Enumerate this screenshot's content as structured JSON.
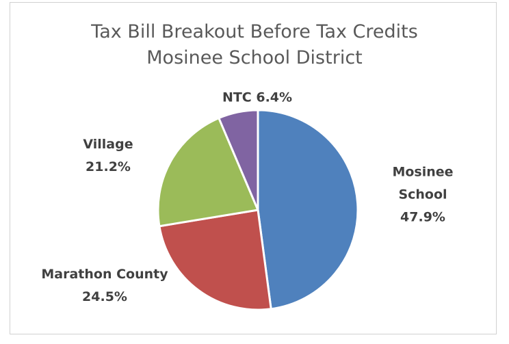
{
  "chart_data": {
    "type": "pie",
    "title": "Tax Bill Breakout Before Tax Credits",
    "subtitle": "Mosinee School District",
    "slices": [
      {
        "label_lines": [
          "Mosinee",
          "School",
          "47.9%"
        ],
        "value": 47.9,
        "color": "#4f81bd"
      },
      {
        "label_lines": [
          "Marathon County",
          "24.5%"
        ],
        "value": 24.5,
        "color": "#c0504d"
      },
      {
        "label_lines": [
          "Village",
          "21.2%"
        ],
        "value": 21.2,
        "color": "#9bbb59"
      },
      {
        "label_lines": [
          "NTC 6.4%"
        ],
        "value": 6.4,
        "color": "#8064a2"
      }
    ],
    "start_angle": "12 o'clock",
    "direction": "clockwise",
    "legend": "none",
    "data_labels": "outside"
  }
}
